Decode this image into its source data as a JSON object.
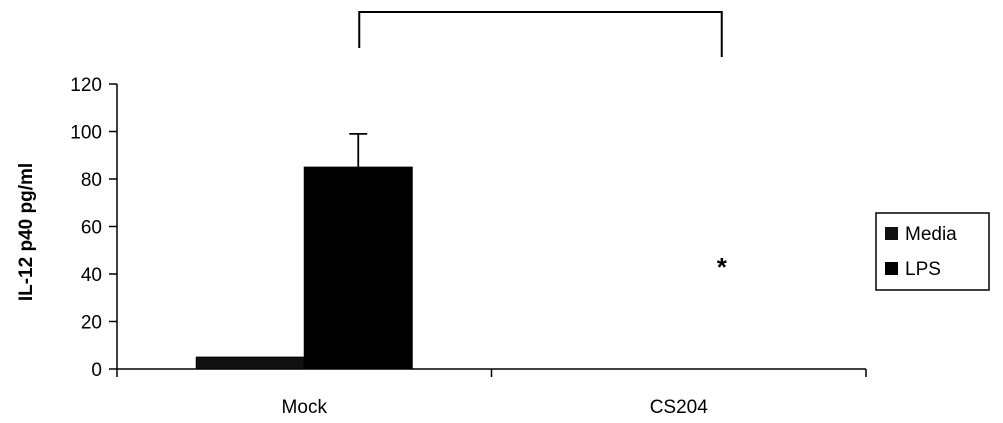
{
  "chart_data": {
    "type": "bar",
    "title": "",
    "xlabel": "",
    "ylabel": "IL-12 p40 pg/ml",
    "ylim": [
      0,
      120
    ],
    "yticks": [
      "0",
      "20",
      "40",
      "60",
      "80",
      "100",
      "120"
    ],
    "categories": [
      "Mock",
      "CS204"
    ],
    "series": [
      {
        "name": "Media",
        "values": [
          5,
          0
        ],
        "color": "#111111"
      },
      {
        "name": "LPS",
        "values": [
          85,
          0
        ],
        "color": "#000000"
      }
    ],
    "error_bars": {
      "LPS": [
        14,
        0
      ]
    },
    "annotations": [
      {
        "text": "*",
        "category": "CS204",
        "value": 43
      }
    ],
    "significance_bracket": {
      "from": "Mock",
      "to": "CS204"
    },
    "legend_position": "right",
    "grid": false
  }
}
